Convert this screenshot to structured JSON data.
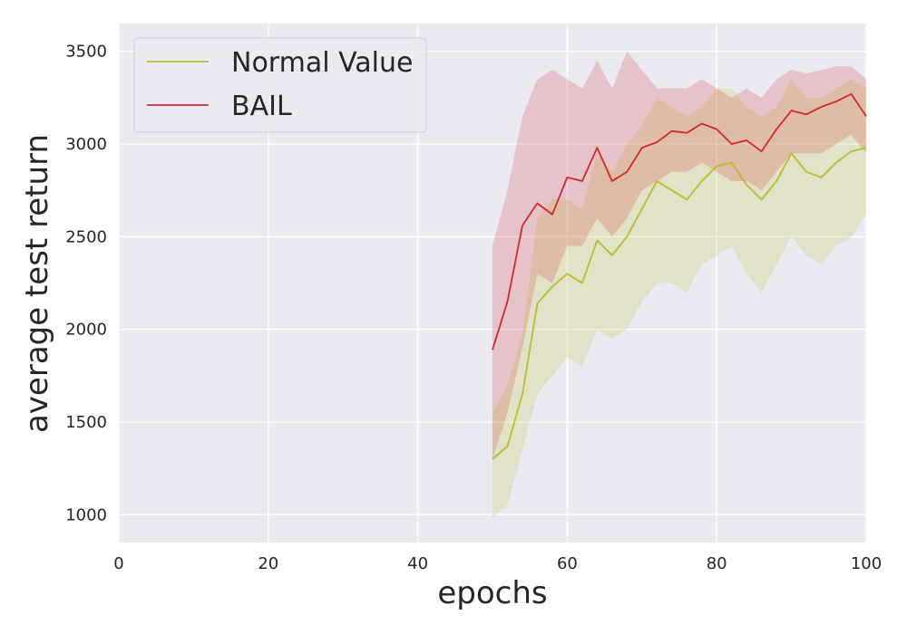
{
  "chart_data": {
    "type": "line",
    "title": "",
    "xlabel": "epochs",
    "ylabel": "average test return",
    "xlim": [
      0,
      100
    ],
    "ylim": [
      850,
      3650
    ],
    "xticks": [
      0,
      20,
      40,
      60,
      80,
      100
    ],
    "yticks": [
      1000,
      1500,
      2000,
      2500,
      3000,
      3500
    ],
    "grid": true,
    "legend_position": "top-left",
    "background": "#EAEAF2",
    "series": [
      {
        "name": "Normal Value",
        "color": "#BCBD22",
        "x": [
          50,
          52,
          54,
          56,
          58,
          60,
          62,
          64,
          66,
          68,
          70,
          72,
          74,
          76,
          78,
          80,
          82,
          84,
          86,
          88,
          90,
          92,
          94,
          96,
          98,
          100
        ],
        "mean": [
          1300,
          1370,
          1650,
          2140,
          2230,
          2300,
          2250,
          2480,
          2400,
          2500,
          2650,
          2800,
          2750,
          2700,
          2800,
          2880,
          2900,
          2780,
          2700,
          2800,
          2950,
          2850,
          2820,
          2900,
          2960,
          2980
        ],
        "lower": [
          980,
          1050,
          1350,
          1650,
          1750,
          1850,
          1800,
          2000,
          1950,
          2000,
          2150,
          2250,
          2250,
          2200,
          2350,
          2400,
          2450,
          2300,
          2200,
          2350,
          2500,
          2400,
          2350,
          2450,
          2500,
          2620
        ],
        "upper": [
          1550,
          1700,
          1980,
          2600,
          2700,
          2700,
          2650,
          2950,
          2850,
          3000,
          3100,
          3250,
          3200,
          3150,
          3200,
          3300,
          3300,
          3200,
          3150,
          3200,
          3350,
          3250,
          3250,
          3300,
          3350,
          3300
        ]
      },
      {
        "name": "BAIL",
        "color": "#D62728",
        "x": [
          50,
          52,
          54,
          56,
          58,
          60,
          62,
          64,
          66,
          68,
          70,
          72,
          74,
          76,
          78,
          80,
          82,
          84,
          86,
          88,
          90,
          92,
          94,
          96,
          98,
          100
        ],
        "mean": [
          1890,
          2150,
          2560,
          2680,
          2620,
          2820,
          2800,
          2980,
          2800,
          2850,
          2980,
          3010,
          3070,
          3060,
          3110,
          3080,
          3000,
          3020,
          2960,
          3080,
          3180,
          3160,
          3200,
          3230,
          3270,
          3150
        ],
        "lower": [
          1300,
          1550,
          1900,
          2300,
          2250,
          2450,
          2450,
          2600,
          2500,
          2600,
          2750,
          2800,
          2850,
          2850,
          2900,
          2850,
          2800,
          2800,
          2750,
          2850,
          2950,
          2950,
          2950,
          3000,
          3050,
          2950
        ],
        "upper": [
          2450,
          2750,
          3150,
          3350,
          3400,
          3350,
          3300,
          3450,
          3300,
          3500,
          3400,
          3300,
          3300,
          3300,
          3350,
          3300,
          3250,
          3300,
          3250,
          3350,
          3400,
          3380,
          3400,
          3420,
          3420,
          3350
        ]
      }
    ]
  }
}
